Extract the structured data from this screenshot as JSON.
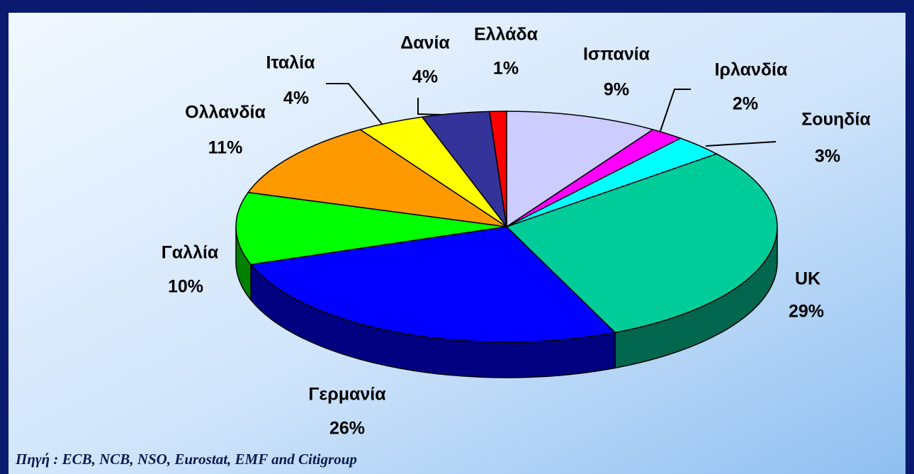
{
  "chart_data": {
    "type": "pie3d",
    "categories": [
      "Ισπανία",
      "Ιρλανδία",
      "Σουηδία",
      "UK",
      "Γερμανία",
      "Γαλλία",
      "Ολλανδία",
      "Ιταλία",
      "Δανία",
      "Ελλάδα"
    ],
    "values": [
      9,
      2,
      3,
      29,
      26,
      10,
      11,
      4,
      4,
      1
    ],
    "value_labels": [
      "9%",
      "2%",
      "3%",
      "29%",
      "26%",
      "10%",
      "11%",
      "4%",
      "4%",
      "1%"
    ],
    "colors": [
      "#ccccff",
      "#ff00ff",
      "#00ffff",
      "#00cc99",
      "#0000ff",
      "#00ff00",
      "#ff9900",
      "#ffff00",
      "#333399",
      "#ff0000"
    ],
    "source": "Πηγή : ECB, NCB, NSO, Eurostat, EMF and Citigroup"
  }
}
